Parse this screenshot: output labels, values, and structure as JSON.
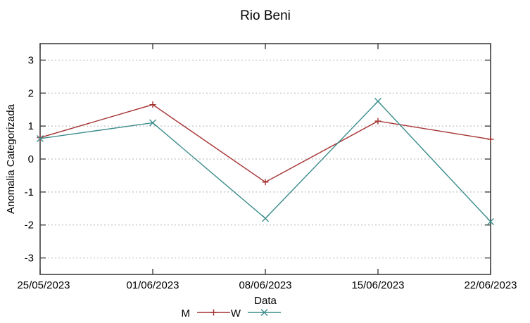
{
  "title": "Rio Beni",
  "chart_data": {
    "type": "line",
    "title": "Rio Beni",
    "xlabel": "Data",
    "ylabel": "Anomalia Categorizada",
    "x_tick_labels": [
      "25/05/2023",
      "01/06/2023",
      "08/06/2023",
      "15/06/2023",
      "22/06/2023"
    ],
    "y_ticks": [
      -3,
      -2,
      -1,
      0,
      1,
      2,
      3
    ],
    "ylim": [
      -3.5,
      3.5
    ],
    "grid": true,
    "legend_position": "bottom-center",
    "series": [
      {
        "name": "M",
        "marker": "plus",
        "color": "#a53232",
        "values": [
          0.65,
          1.65,
          -0.7,
          1.15,
          0.6
        ]
      },
      {
        "name": "W",
        "marker": "cross",
        "color": "#3c8c8c",
        "values": [
          0.62,
          1.1,
          -1.8,
          1.75,
          -1.9
        ]
      }
    ]
  },
  "colors": {
    "background": "#ffffff",
    "frame": "#404040",
    "grid": "#b3b3b3",
    "text": "#000000",
    "series_m": "#a53232",
    "series_w": "#3c8c8c"
  }
}
